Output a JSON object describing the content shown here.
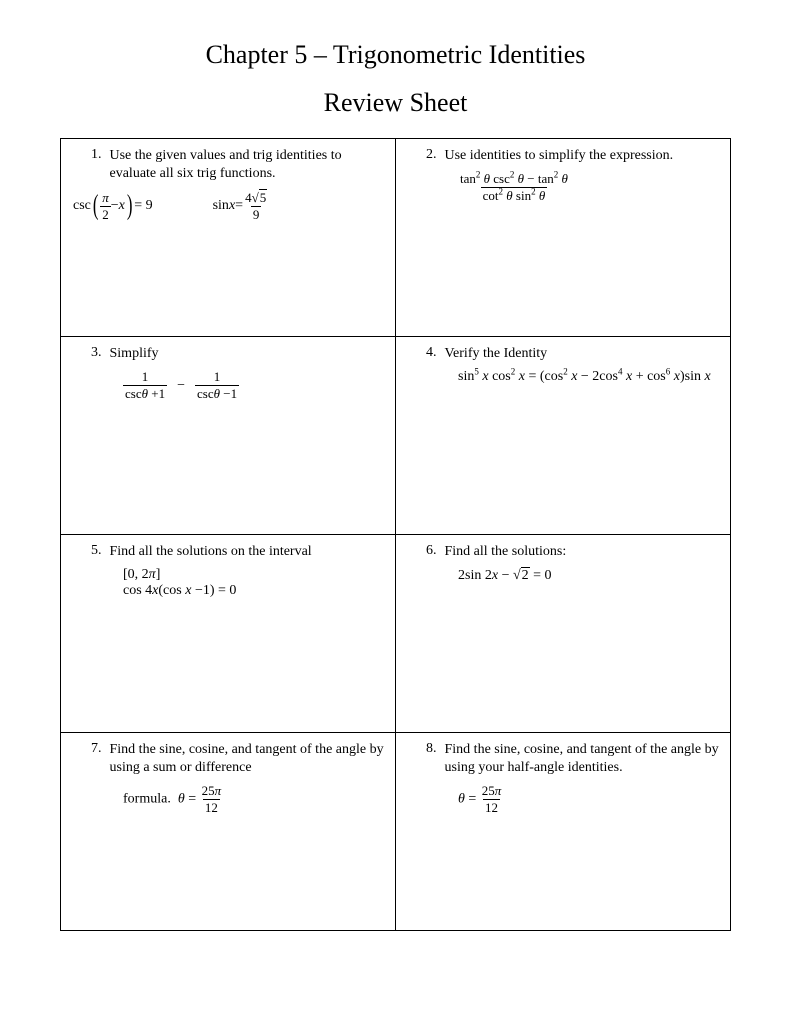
{
  "title": "Chapter 5 – Trigonometric Identities",
  "subtitle": "Review Sheet",
  "problems": [
    {
      "number": "1.",
      "text": "Use the given values and trig identities to evaluate all six trig functions.",
      "math_html": "<span class='math-expr'>csc<span class='paren-large'>(</span><span class='frac'><span class='frac-num'><span class='italic'>π</span></span><span class='frac-den'>2</span></span> − <span class='italic'>x</span><span class='paren-large'>)</span> = 9</span><span class='math-expr' style='margin-left:32px'>sin <span class='italic'>x</span> = <span class='frac'><span class='frac-num'>4<span class='sqrt-sym'>√</span><span class='sqrt-bar'>5</span></span><span class='frac-den'>9</span></span></span>",
      "indent": false
    },
    {
      "number": "2.",
      "text": "Use identities to simplify the expression.",
      "math_html": "<span class='frac'><span class='frac-num'>tan<span class='sup'>2</span> <span class='italic'>θ</span> csc<span class='sup'>2</span> <span class='italic'>θ</span> − tan<span class='sup'>2</span> <span class='italic'>θ</span></span><span class='frac-den'>cot<span class='sup'>2</span> <span class='italic'>θ</span> sin<span class='sup'>2</span> <span class='italic'>θ</span></span></span>",
      "indent": true
    },
    {
      "number": "3.",
      "text": "Simplify",
      "math_html": "<span class='frac'><span class='frac-num'>1</span><span class='frac-den'>csc<span class='italic'>θ</span> +1</span></span><span class='minus-gap'>−</span><span class='frac'><span class='frac-num'>1</span><span class='frac-den'>csc<span class='italic'>θ</span> −1</span></span>",
      "indent": true
    },
    {
      "number": "4.",
      "text": "Verify the Identity",
      "math_html": "sin<span class='sup'>5</span> <span class='italic'>x</span> cos<span class='sup'>2</span> <span class='italic'>x</span> = (cos<span class='sup'>2</span> <span class='italic'>x</span> − 2cos<span class='sup'>4</span> <span class='italic'>x</span> + cos<span class='sup'>6</span> <span class='italic'>x</span>)sin <span class='italic'>x</span>",
      "indent": true
    },
    {
      "number": "5.",
      "text": "Find all the solutions on the interval",
      "math_html": "[0, 2<span class='italic'>π</span>]<br>cos 4<span class='italic'>x</span>(cos <span class='italic'>x</span> −1) = 0",
      "indent": true
    },
    {
      "number": "6.",
      "text": "Find all the solutions:",
      "math_html": "2sin 2<span class='italic'>x</span> − <span class='sqrt-sym'>√</span><span class='sqrt-bar'>2</span> = 0",
      "indent": true
    },
    {
      "number": "7.",
      "text": "Find the sine, cosine, and tangent of the angle by using a sum or difference",
      "math_html": "formula. &nbsp;<span class='italic'>θ</span> = <span class='frac'><span class='frac-num'>25<span class='italic'>π</span></span><span class='frac-den'>12</span></span>",
      "indent": true
    },
    {
      "number": "8.",
      "text": "Find the sine, cosine, and tangent of the angle by using your half-angle identities.",
      "math_html": "<span class='italic'>θ</span> = <span class='frac'><span class='frac-num'>25<span class='italic'>π</span></span><span class='frac-den'>12</span></span>",
      "indent": true
    }
  ]
}
